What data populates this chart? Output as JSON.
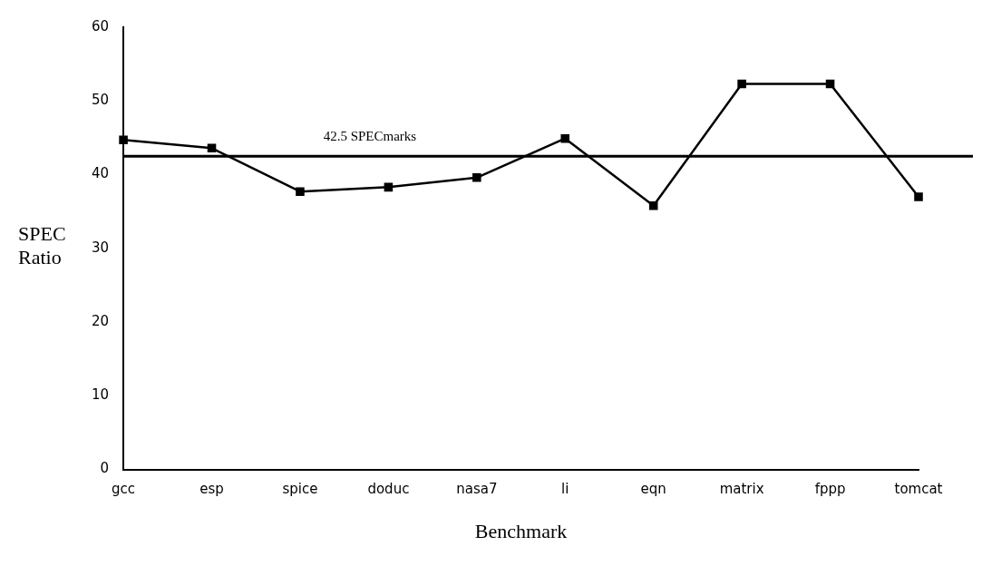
{
  "chart_data": {
    "type": "line",
    "xlabel": "Benchmark",
    "ylabel": "SPEC Ratio",
    "categories": [
      "gcc",
      "esp",
      "spice",
      "doduc",
      "nasa7",
      "li",
      "eqn",
      "matrix",
      "fppp",
      "tomcat"
    ],
    "series": [
      {
        "color": "#000000",
        "values": [
          44.7,
          43.6,
          37.7,
          38.3,
          39.6,
          44.9,
          35.8,
          52.3,
          52.3,
          37.0
        ]
      }
    ],
    "ylim": [
      0,
      60
    ],
    "yticks": [
      0,
      10,
      20,
      30,
      40,
      50,
      60
    ],
    "ref_lines": [
      {
        "axis": "y",
        "value": 42.5,
        "label": "42.5 SPECmarks",
        "color": "#000000",
        "line_style": "solid"
      }
    ],
    "grid": false,
    "legend": false,
    "marker": "square",
    "line_style": "solid"
  }
}
